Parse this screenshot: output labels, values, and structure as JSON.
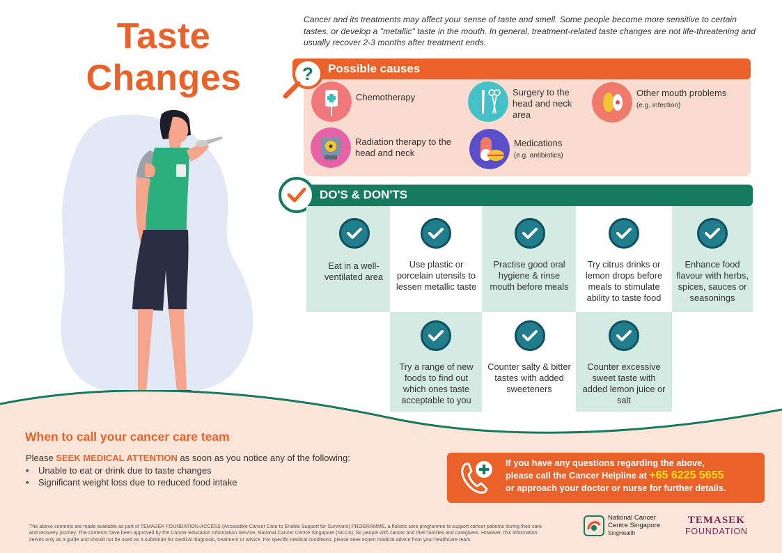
{
  "title": {
    "line1": "Taste",
    "line2": "Changes"
  },
  "intro": "Cancer and its treatments may affect your sense of taste and smell. Some people become more sensitive to certain tastes, or develop a \"metallic\" taste in the mouth. In general, treatment-related taste changes are not life-threatening  and usually recover 2-3 months after treatment ends.",
  "causes": {
    "heading": "Possible causes",
    "items": [
      {
        "icon": "iv-drip-icon",
        "label": "Chemotherapy",
        "note": ""
      },
      {
        "icon": "scalpel-icon",
        "label": "Surgery to the head and neck area",
        "note": ""
      },
      {
        "icon": "germ-icon",
        "label": "Other mouth problems",
        "note": "(e.g. infection)"
      },
      {
        "icon": "radiation-machine-icon",
        "label": "Radiation therapy to the head and neck",
        "note": ""
      },
      {
        "icon": "pill-capsule-icon",
        "label": "Medications",
        "note": "(e.g. antibiotics)"
      }
    ]
  },
  "dos": {
    "heading": "DO'S & DON'TS",
    "items": [
      "Eat in a well-ventilated area",
      "Use plastic or porcelain utensils to lessen metallic taste",
      "Practise good oral hygiene & rinse mouth before meals",
      "Try citrus drinks or lemon drops before meals to stimulate ability to taste food",
      "Enhance food flavour with herbs, spices, sauces or seasonings",
      "Try a range of new foods to find out which ones taste acceptable to you",
      "Counter salty & bitter tastes with added sweeteners",
      "Counter excessive sweet taste with added lemon juice or salt"
    ]
  },
  "when": {
    "heading": "When to call your cancer care team",
    "seek_prefix": "Please",
    "seek_highlight": "SEEK MEDICAL ATTENTION",
    "seek_suffix": "as soon as you notice any of the following:",
    "bullets": [
      "Unable to eat or drink due to taste changes",
      "Significant weight loss due to reduced food intake"
    ]
  },
  "helpline": {
    "line1": "If you have any questions regarding the above,",
    "line2_prefix": "please call the Cancer Helpline at",
    "number": "+65 6225 5655",
    "line3": "or approach  your doctor or nurse for further details."
  },
  "disclaimer": "The above contents are made available as part of TEMASEK FOUNDATION-ACCESS (Accessible Cancer Care to Enable Support for Survivors) PROGRAMME, a holistic care programme to support cancer patients during their care and recovery journey. The contents have been approved by the Cancer Education Information Service, National Cancer Centre Singapore (NCCS), for people with cancer and their families and caregivers. However, this information serves only as a guide and should not be used as a substitute for medical diagnosis, treatment or advice. For specific medical conditions, please seek expert medical advice from your healthcare team.",
  "logos": {
    "nccs_line1": "National Cancer",
    "nccs_line2": "Centre Singapore",
    "nccs_sub": "SingHealth",
    "temasek_line1": "TEMASEK",
    "temasek_line2": "FOUNDATION"
  },
  "colors": {
    "orange": "#ea6229",
    "green": "#157a5e",
    "teal": "#1f7d8c",
    "mint": "#d3ebe2",
    "peach": "#f9dccf"
  }
}
